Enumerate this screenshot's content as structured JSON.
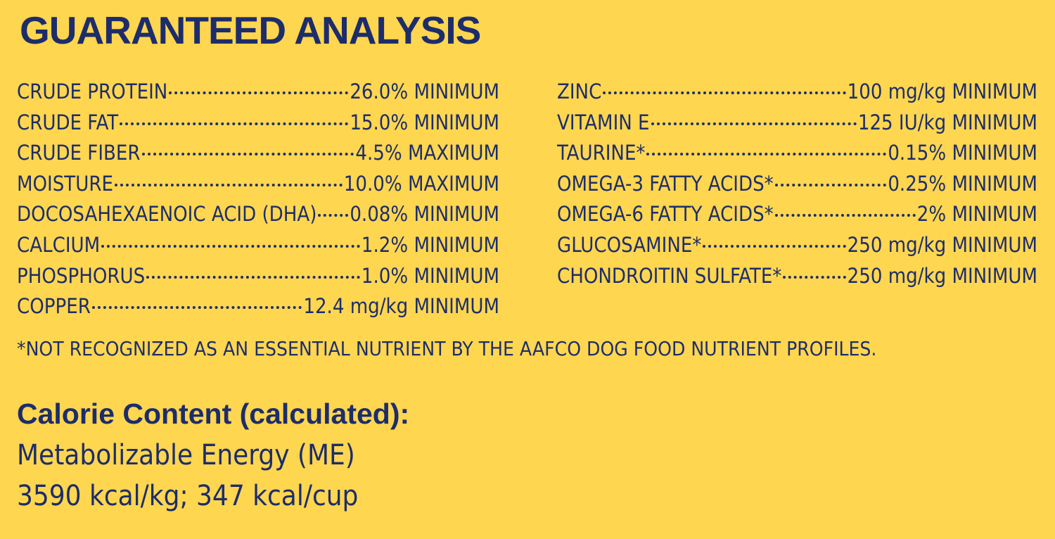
{
  "header": {
    "title": "GUARANTEED ANALYSIS"
  },
  "analysis": {
    "left": [
      {
        "name": "CRUDE PROTEIN",
        "value": "26.0% MINIMUM"
      },
      {
        "name": "CRUDE FAT",
        "value": "15.0% MINIMUM"
      },
      {
        "name": "CRUDE FIBER",
        "value": "4.5% MAXIMUM"
      },
      {
        "name": "MOISTURE",
        "value": "10.0% MAXIMUM"
      },
      {
        "name": "DOCOSAHEXAENOIC ACID (DHA)",
        "value": "0.08% MINIMUM"
      },
      {
        "name": "CALCIUM",
        "value": "1.2% MINIMUM"
      },
      {
        "name": "PHOSPHORUS",
        "value": "1.0% MINIMUM"
      },
      {
        "name": "COPPER",
        "value": "12.4 mg/kg MINIMUM"
      }
    ],
    "right": [
      {
        "name": "ZINC",
        "value": "100 mg/kg MINIMUM"
      },
      {
        "name": "VITAMIN E",
        "value": "125 IU/kg MINIMUM"
      },
      {
        "name": "TAURINE*",
        "value": "0.15% MINIMUM"
      },
      {
        "name": "OMEGA-3 FATTY ACIDS*",
        "value": "0.25% MINIMUM"
      },
      {
        "name": "OMEGA-6 FATTY ACIDS*",
        "value": "2% MINIMUM"
      },
      {
        "name": "GLUCOSAMINE*",
        "value": "250 mg/kg MINIMUM"
      },
      {
        "name": "CHONDROITIN SULFATE*",
        "value": "250 mg/kg MINIMUM"
      }
    ],
    "footnote": "*NOT RECOGNIZED AS AN ESSENTIAL NUTRIENT BY THE AAFCO DOG FOOD NUTRIENT PROFILES."
  },
  "calorie": {
    "title": "Calorie Content (calculated):",
    "line1": "Metabolizable Energy (ME)",
    "line2": "3590 kcal/kg; 347 kcal/cup"
  },
  "colors": {
    "background": "#ffd64f",
    "text": "#1d2d6b"
  }
}
